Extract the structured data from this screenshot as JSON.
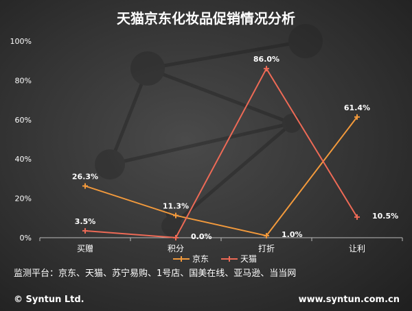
{
  "chart_data": {
    "type": "line",
    "title": "天猫京东化妆品促销情况分析",
    "categories": [
      "买赠",
      "积分",
      "打折",
      "让利"
    ],
    "series": [
      {
        "name": "京东",
        "values": [
          26.3,
          11.3,
          1.0,
          61.4
        ],
        "labels": [
          "26.3%",
          "11.3%",
          "1.0%",
          "61.4%"
        ],
        "color": "#f39a3c"
      },
      {
        "name": "天猫",
        "values": [
          3.5,
          0.0,
          86.0,
          10.5
        ],
        "labels": [
          "3.5%",
          "0.0%",
          "86.0%",
          "10.5%"
        ],
        "color": "#ee6a56"
      }
    ],
    "ylim": [
      0,
      100
    ],
    "yticks": [
      "0%",
      "20%",
      "40%",
      "60%",
      "80%",
      "100%"
    ],
    "legend": "bottom",
    "grid": false
  },
  "note": "监测平台：京东、天猫、苏宁易购、1号店、国美在线、亚马逊、当当网",
  "footer": {
    "left": "© Syntun Ltd.",
    "right": "www.syntun.com.cn"
  }
}
